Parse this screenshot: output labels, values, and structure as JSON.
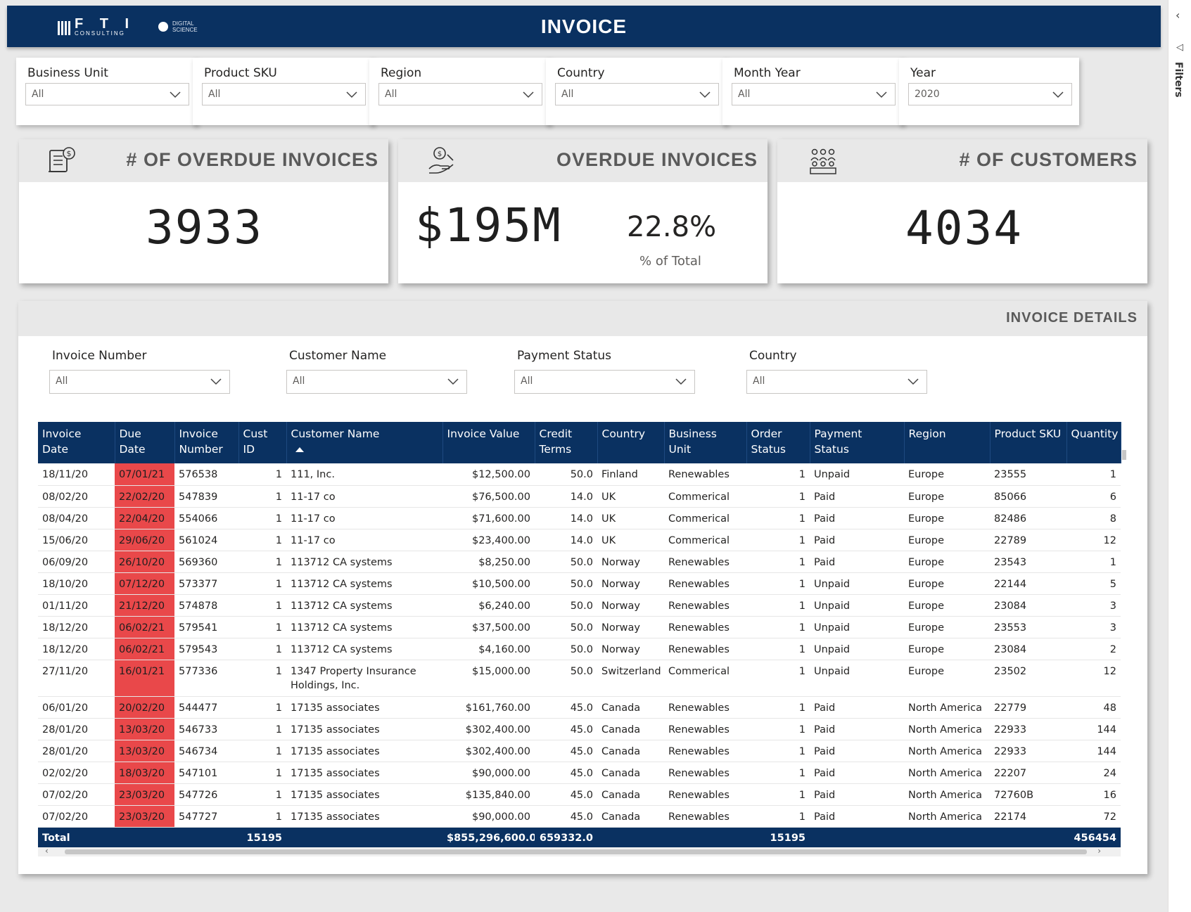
{
  "header": {
    "title": "INVOICE",
    "logo_fti": "F T I",
    "logo_fti_sub": "CONSULTING",
    "logo_ds_1": "DIGITAL",
    "logo_ds_2": "SCIENCE"
  },
  "slicers": [
    {
      "label": "Business Unit",
      "value": "All"
    },
    {
      "label": "Product SKU",
      "value": "All"
    },
    {
      "label": "Region",
      "value": "All"
    },
    {
      "label": "Country",
      "value": "All"
    },
    {
      "label": "Month Year",
      "value": "All"
    },
    {
      "label": "Year",
      "value": "2020"
    }
  ],
  "cards": {
    "overdue_count": {
      "title": "# OF OVERDUE INVOICES",
      "value": "3933"
    },
    "overdue_value": {
      "title": "OVERDUE INVOICES",
      "value": "$195M",
      "pct": "22.8%",
      "pct_label": "% of Total"
    },
    "customers": {
      "title": "# OF CUSTOMERS",
      "value": "4034"
    }
  },
  "details": {
    "title": "INVOICE DETAILS",
    "filters": [
      {
        "label": "Invoice Number",
        "value": "All"
      },
      {
        "label": "Customer Name",
        "value": "All"
      },
      {
        "label": "Payment Status",
        "value": "All"
      },
      {
        "label": "Country",
        "value": "All"
      }
    ],
    "columns": [
      "Invoice Date",
      "Due Date",
      "Invoice Number",
      "Cust ID",
      "Customer Name",
      "Invoice Value",
      "Credit Terms",
      "Country",
      "Business Unit",
      "Order Status",
      "Payment Status",
      "Region",
      "Product SKU",
      "Quantity"
    ],
    "rows": [
      [
        "18/11/20",
        "07/01/21",
        "576538",
        "1",
        "111, Inc.",
        "$12,500.00",
        "50.0",
        "Finland",
        "Renewables",
        "1",
        "Unpaid",
        "Europe",
        "23555",
        "1"
      ],
      [
        "08/02/20",
        "22/02/20",
        "547839",
        "1",
        "11-17 co",
        "$76,500.00",
        "14.0",
        "UK",
        "Commerical",
        "1",
        "Paid",
        "Europe",
        "85066",
        "6"
      ],
      [
        "08/04/20",
        "22/04/20",
        "554066",
        "1",
        "11-17 co",
        "$71,600.00",
        "14.0",
        "UK",
        "Commerical",
        "1",
        "Paid",
        "Europe",
        "82486",
        "8"
      ],
      [
        "15/06/20",
        "29/06/20",
        "561024",
        "1",
        "11-17 co",
        "$23,400.00",
        "14.0",
        "UK",
        "Commerical",
        "1",
        "Paid",
        "Europe",
        "22789",
        "12"
      ],
      [
        "06/09/20",
        "26/10/20",
        "569360",
        "1",
        "113712 CA systems",
        "$8,250.00",
        "50.0",
        "Norway",
        "Renewables",
        "1",
        "Paid",
        "Europe",
        "23543",
        "1"
      ],
      [
        "18/10/20",
        "07/12/20",
        "573377",
        "1",
        "113712 CA systems",
        "$10,500.00",
        "50.0",
        "Norway",
        "Renewables",
        "1",
        "Unpaid",
        "Europe",
        "22144",
        "5"
      ],
      [
        "01/11/20",
        "21/12/20",
        "574878",
        "1",
        "113712 CA systems",
        "$6,240.00",
        "50.0",
        "Norway",
        "Renewables",
        "1",
        "Unpaid",
        "Europe",
        "23084",
        "3"
      ],
      [
        "18/12/20",
        "06/02/21",
        "579541",
        "1",
        "113712 CA systems",
        "$37,500.00",
        "50.0",
        "Norway",
        "Renewables",
        "1",
        "Unpaid",
        "Europe",
        "23553",
        "3"
      ],
      [
        "18/12/20",
        "06/02/21",
        "579543",
        "1",
        "113712 CA systems",
        "$4,160.00",
        "50.0",
        "Norway",
        "Renewables",
        "1",
        "Unpaid",
        "Europe",
        "23084",
        "2"
      ],
      [
        "27/11/20",
        "16/01/21",
        "577336",
        "1",
        "1347 Property Insurance Holdings, Inc.",
        "$15,000.00",
        "50.0",
        "Switzerland",
        "Commerical",
        "1",
        "Unpaid",
        "Europe",
        "23502",
        "12"
      ],
      [
        "06/01/20",
        "20/02/20",
        "544477",
        "1",
        "17135 associates",
        "$161,760.00",
        "45.0",
        "Canada",
        "Renewables",
        "1",
        "Paid",
        "North America",
        "22779",
        "48"
      ],
      [
        "28/01/20",
        "13/03/20",
        "546733",
        "1",
        "17135 associates",
        "$302,400.00",
        "45.0",
        "Canada",
        "Renewables",
        "1",
        "Paid",
        "North America",
        "22933",
        "144"
      ],
      [
        "28/01/20",
        "13/03/20",
        "546734",
        "1",
        "17135 associates",
        "$302,400.00",
        "45.0",
        "Canada",
        "Renewables",
        "1",
        "Paid",
        "North America",
        "22933",
        "144"
      ],
      [
        "02/02/20",
        "18/03/20",
        "547101",
        "1",
        "17135 associates",
        "$90,000.00",
        "45.0",
        "Canada",
        "Renewables",
        "1",
        "Paid",
        "North America",
        "22207",
        "24"
      ],
      [
        "07/02/20",
        "23/03/20",
        "547726",
        "1",
        "17135 associates",
        "$135,840.00",
        "45.0",
        "Canada",
        "Renewables",
        "1",
        "Paid",
        "North America",
        "72760B",
        "16"
      ],
      [
        "07/02/20",
        "23/03/20",
        "547727",
        "1",
        "17135 associates",
        "$90,000.00",
        "45.0",
        "Canada",
        "Renewables",
        "1",
        "Paid",
        "North America",
        "22174",
        "72"
      ]
    ],
    "total": [
      "Total",
      "",
      "",
      "15195",
      "",
      "$855,296,600.00",
      "659332.0",
      "",
      "",
      "15195",
      "",
      "",
      "",
      "456454"
    ]
  },
  "filters_pane": {
    "label": "Filters"
  },
  "colors": {
    "header_bg": "#0a3161",
    "overdue_cell": "#e9484a"
  }
}
